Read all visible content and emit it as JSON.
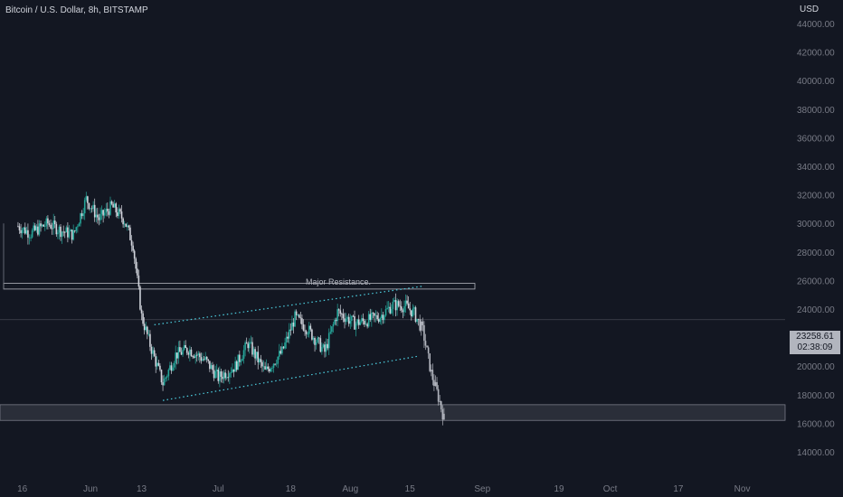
{
  "header": {
    "title": "Bitcoin / U.S. Dollar, 8h, BITSTAMP"
  },
  "price_axis": {
    "currency": "USD",
    "ticks": [
      "44000.00",
      "42000.00",
      "40000.00",
      "38000.00",
      "36000.00",
      "34000.00",
      "32000.00",
      "30000.00",
      "28000.00",
      "26000.00",
      "24000.00",
      "22000.00",
      "20000.00",
      "18000.00",
      "16000.00",
      "14000.00"
    ],
    "current_price": "23258.61",
    "countdown": "02:38:09"
  },
  "time_axis": {
    "ticks": [
      "16",
      "Jun",
      "13",
      "Jul",
      "18",
      "Aug",
      "15",
      "Sep",
      "19",
      "Oct",
      "17",
      "Nov"
    ]
  },
  "annotations": {
    "resistance_label": "Major Resistance."
  },
  "colors": {
    "background": "#131722",
    "up": "#26a69a",
    "down": "#d1d4dc",
    "projection": "#b2b5be",
    "channel": "#4dd0e1",
    "grid_text": "#787b86"
  },
  "chart_data": {
    "type": "candlestick",
    "title": "Bitcoin / U.S. Dollar, 8h, BITSTAMP",
    "ylabel": "USD",
    "ylim": [
      14000,
      45000
    ],
    "current_price": 23258.61,
    "path": [
      {
        "date": "2022-05-15",
        "price": 29800
      },
      {
        "date": "2022-05-18",
        "price": 29300
      },
      {
        "date": "2022-05-22",
        "price": 30000
      },
      {
        "date": "2022-05-25",
        "price": 29500
      },
      {
        "date": "2022-05-28",
        "price": 29200
      },
      {
        "date": "2022-05-31",
        "price": 31700
      },
      {
        "date": "2022-06-03",
        "price": 30300
      },
      {
        "date": "2022-06-06",
        "price": 31200
      },
      {
        "date": "2022-06-09",
        "price": 30200
      },
      {
        "date": "2022-06-11",
        "price": 28500
      },
      {
        "date": "2022-06-13",
        "price": 23500
      },
      {
        "date": "2022-06-15",
        "price": 21500
      },
      {
        "date": "2022-06-18",
        "price": 18800
      },
      {
        "date": "2022-06-21",
        "price": 20800
      },
      {
        "date": "2022-06-24",
        "price": 21200
      },
      {
        "date": "2022-06-28",
        "price": 20400
      },
      {
        "date": "2022-07-01",
        "price": 19200
      },
      {
        "date": "2022-07-05",
        "price": 20000
      },
      {
        "date": "2022-07-08",
        "price": 21600
      },
      {
        "date": "2022-07-12",
        "price": 19600
      },
      {
        "date": "2022-07-16",
        "price": 21000
      },
      {
        "date": "2022-07-19",
        "price": 23400
      },
      {
        "date": "2022-07-22",
        "price": 22600
      },
      {
        "date": "2022-07-26",
        "price": 21000
      },
      {
        "date": "2022-07-29",
        "price": 23800
      },
      {
        "date": "2022-08-02",
        "price": 23000
      },
      {
        "date": "2022-08-05",
        "price": 23200
      },
      {
        "date": "2022-08-08",
        "price": 23500
      },
      {
        "date": "2022-08-11",
        "price": 24300
      },
      {
        "date": "2022-08-14",
        "price": 24200
      },
      {
        "date": "2022-08-16",
        "price": 23700
      },
      {
        "date": "2022-08-18",
        "price": 22500
      },
      {
        "date": "2022-08-20",
        "price": 19500
      },
      {
        "date": "2022-08-22",
        "price": 17500
      },
      {
        "date": "2022-08-23",
        "price": 16300
      }
    ],
    "projection_from_date": "2022-08-17",
    "resistance_zone": {
      "low": 25400,
      "high": 25800,
      "label": "Major Resistance."
    },
    "support_zone": {
      "low": 16200,
      "high": 17300
    },
    "channel": {
      "upper": [
        {
          "date": "2022-06-16",
          "price": 22900
        },
        {
          "date": "2022-08-18",
          "price": 25600
        }
      ],
      "lower": [
        {
          "date": "2022-06-18",
          "price": 17600
        },
        {
          "date": "2022-08-17",
          "price": 20700
        }
      ]
    },
    "current_price_line": 23258.61
  }
}
